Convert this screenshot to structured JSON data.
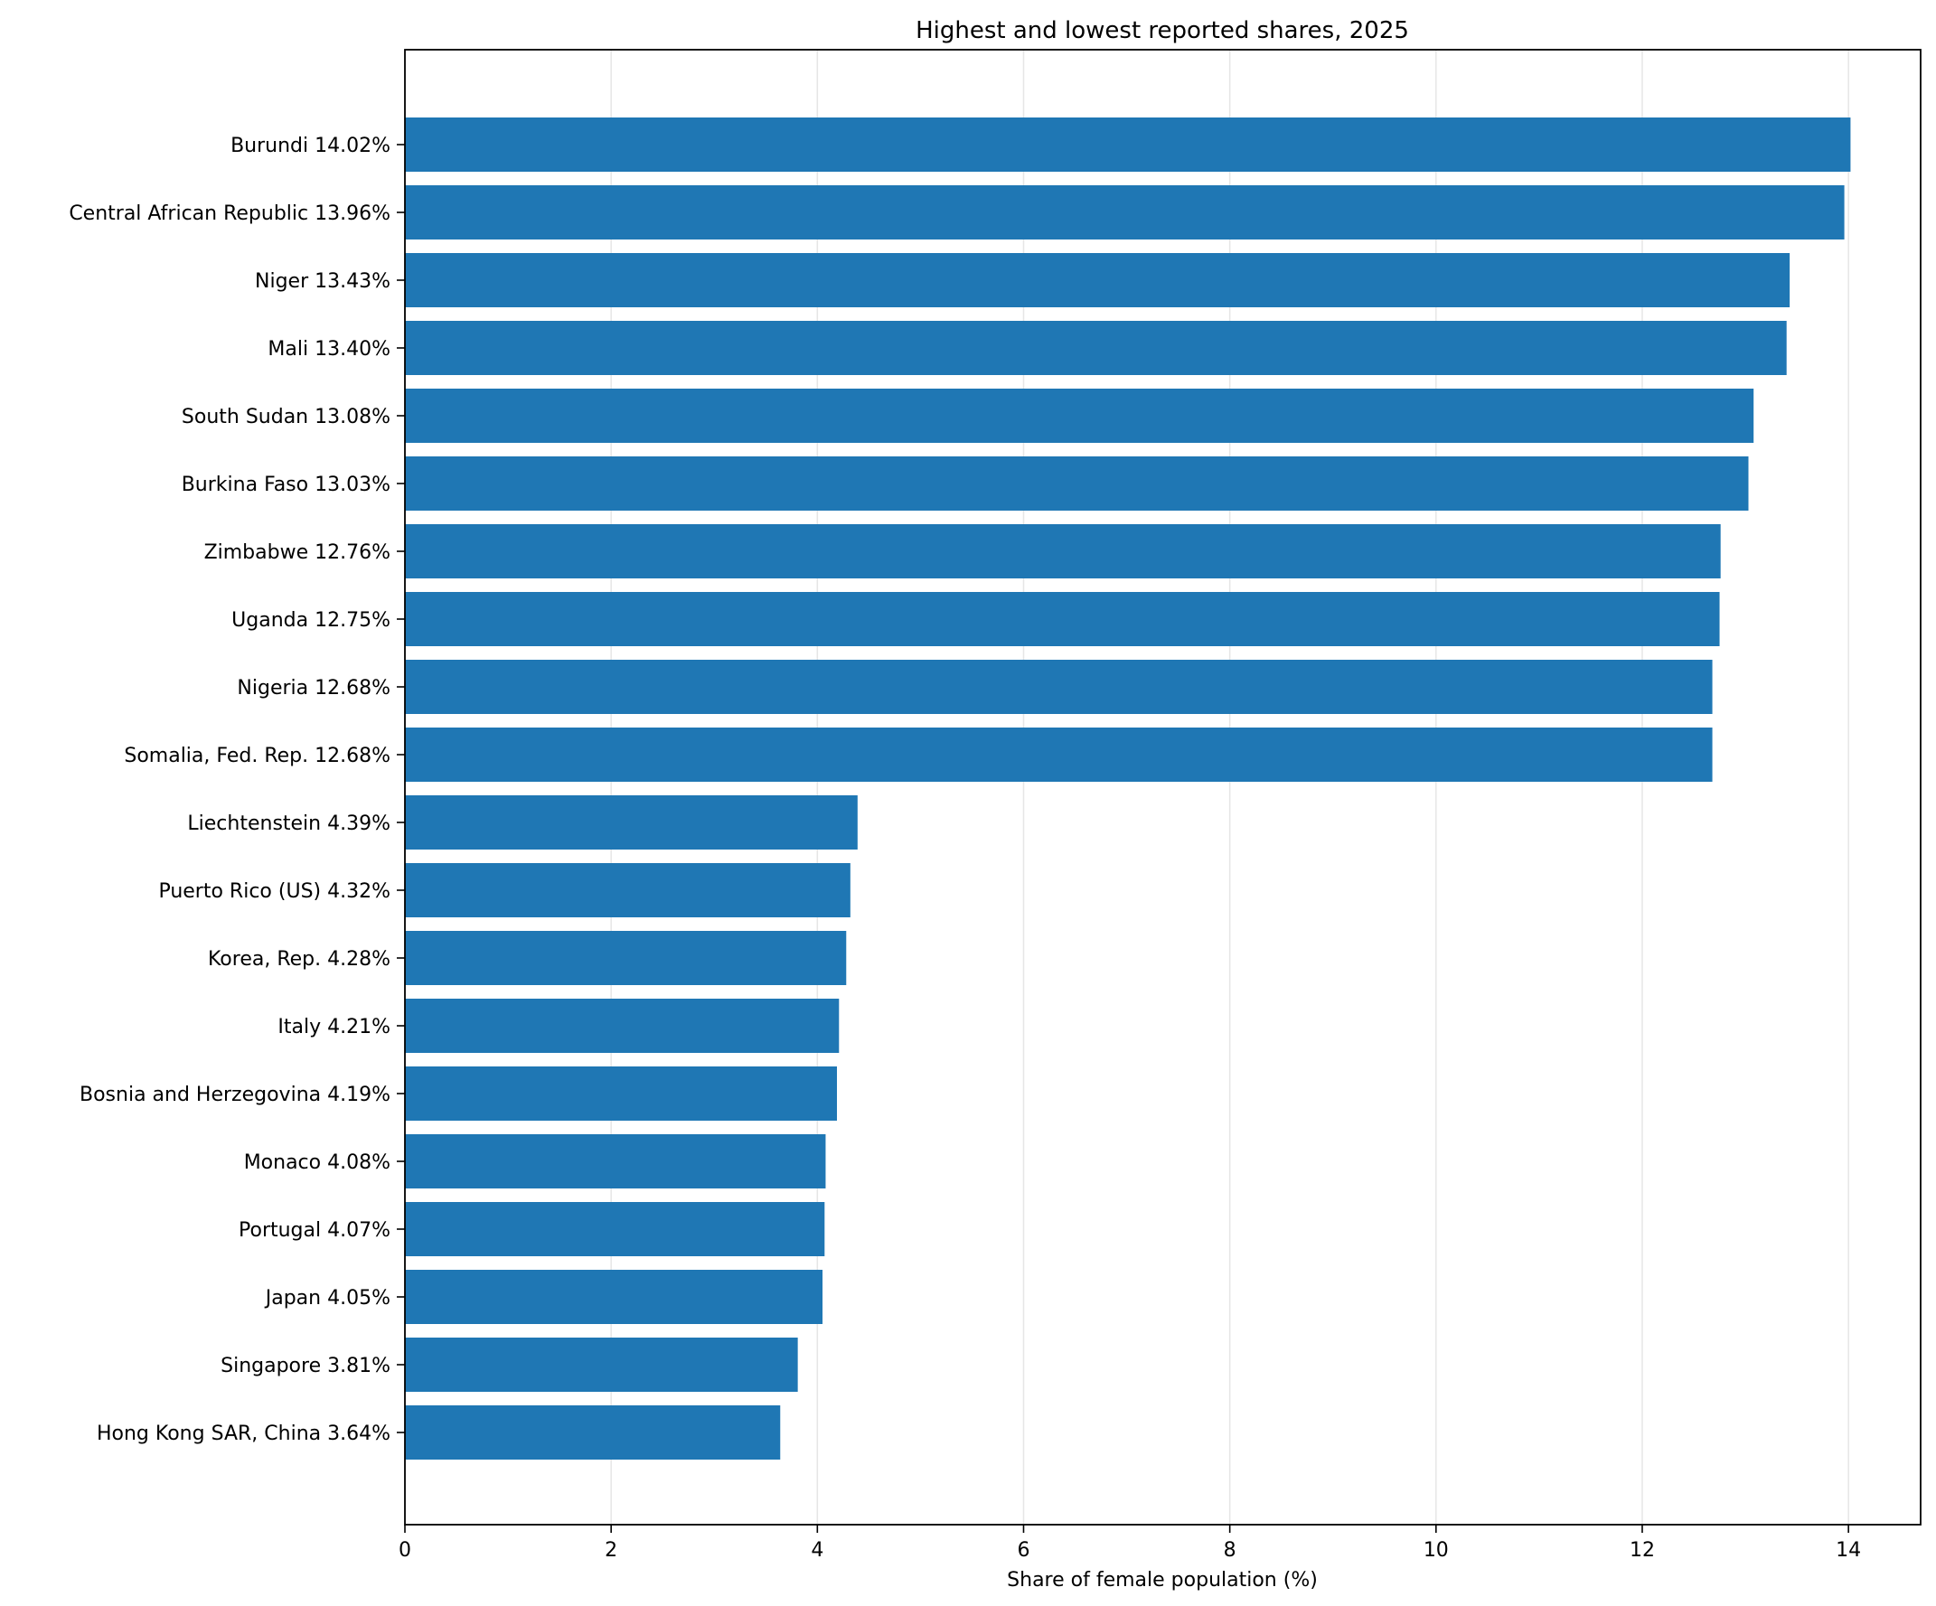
{
  "chart_data": {
    "type": "bar",
    "orientation": "horizontal",
    "title": "Highest and lowest reported shares, 2025",
    "xlabel": "Share of female population (%)",
    "ylabel": "",
    "xlim": [
      0,
      14.7
    ],
    "xticks": [
      0,
      2,
      4,
      6,
      8,
      10,
      12,
      14
    ],
    "grid": "vertical",
    "bar_color": "#1f77b4",
    "categories": [
      "Burundi  14.02%",
      "Central African Republic  13.96%",
      "Niger  13.43%",
      "Mali  13.40%",
      "South Sudan  13.08%",
      "Burkina Faso  13.03%",
      "Zimbabwe  12.76%",
      "Uganda  12.75%",
      "Nigeria  12.68%",
      "Somalia, Fed. Rep.  12.68%",
      "Liechtenstein  4.39%",
      "Puerto Rico (US)  4.32%",
      "Korea, Rep.  4.28%",
      "Italy  4.21%",
      "Bosnia and Herzegovina  4.19%",
      "Monaco  4.08%",
      "Portugal  4.07%",
      "Japan  4.05%",
      "Singapore  3.81%",
      "Hong Kong SAR, China  3.64%"
    ],
    "values": [
      14.02,
      13.96,
      13.43,
      13.4,
      13.08,
      13.03,
      12.76,
      12.75,
      12.68,
      12.68,
      4.39,
      4.32,
      4.28,
      4.21,
      4.19,
      4.08,
      4.07,
      4.05,
      3.81,
      3.64
    ]
  }
}
